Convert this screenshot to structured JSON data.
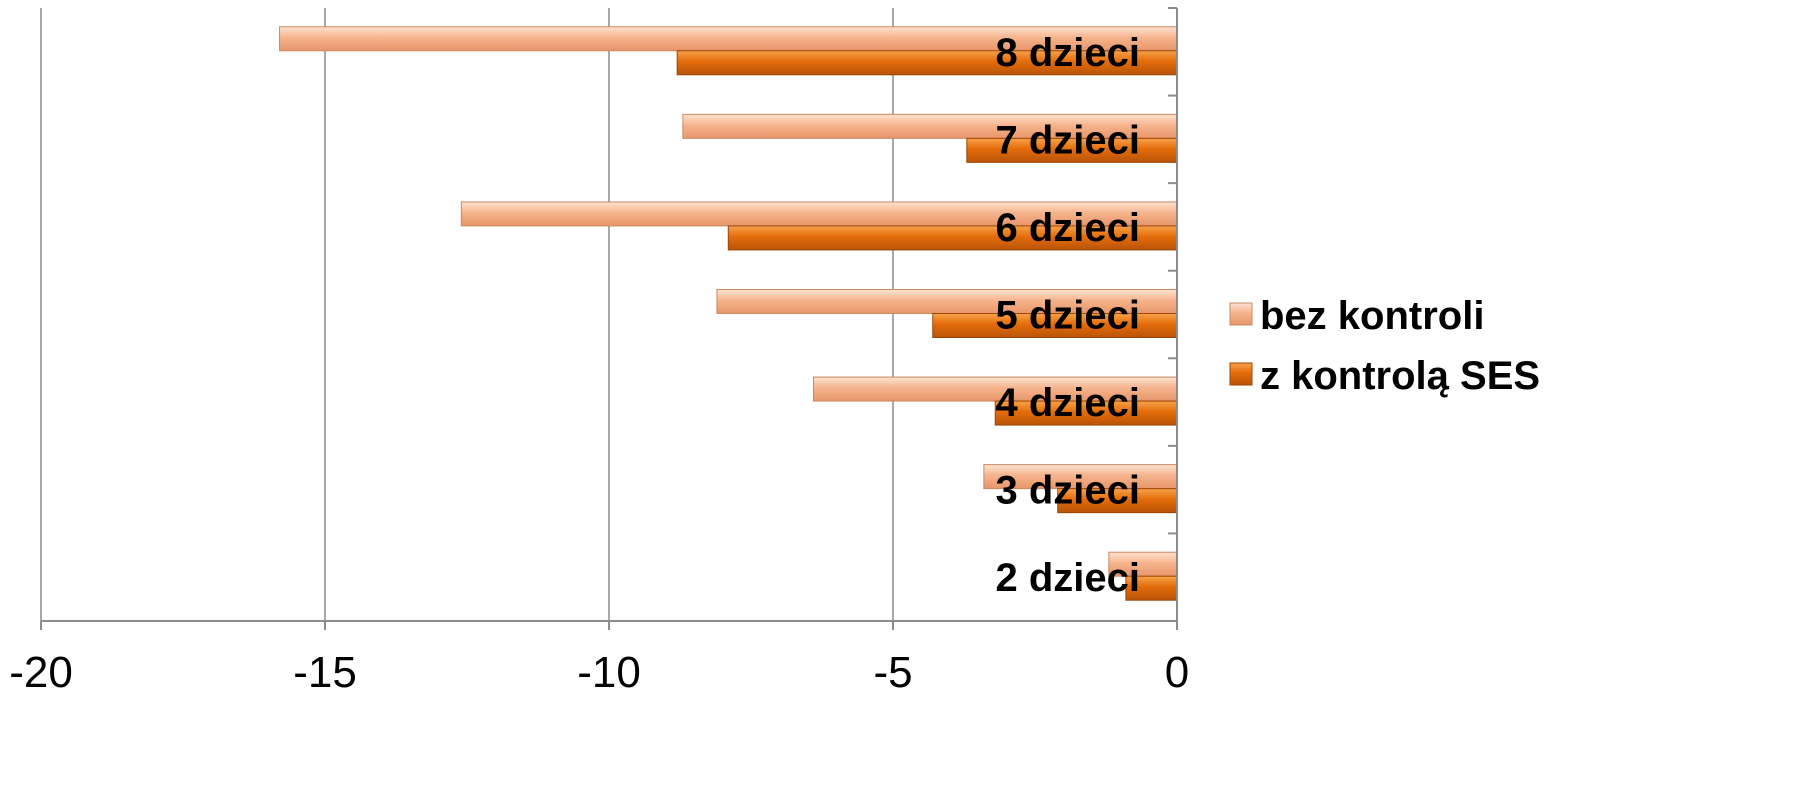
{
  "chart_data": {
    "type": "bar",
    "orientation": "horizontal",
    "categories": [
      "2 dzieci",
      "3 dzieci",
      "4 dzieci",
      "5 dzieci",
      "6 dzieci",
      "7 dzieci",
      "8 dzieci"
    ],
    "series": [
      {
        "name": "bez kontroli",
        "values": [
          -1.2,
          -3.4,
          -6.4,
          -8.1,
          -12.6,
          -8.7,
          -15.8
        ],
        "color": "#f4b183"
      },
      {
        "name": "z kontrolą SES",
        "values": [
          -0.9,
          -2.1,
          -3.2,
          -4.3,
          -7.9,
          -3.7,
          -8.8
        ],
        "color": "#e46c0a"
      }
    ],
    "xlim": [
      -20,
      0
    ],
    "xticks": [
      "-20",
      "-15",
      "-10",
      "-5",
      "0"
    ],
    "xtick_values": [
      -20,
      -15,
      -10,
      -5,
      0
    ],
    "grid": true,
    "legend_position": "right",
    "title": "",
    "xlabel": "",
    "ylabel": ""
  }
}
